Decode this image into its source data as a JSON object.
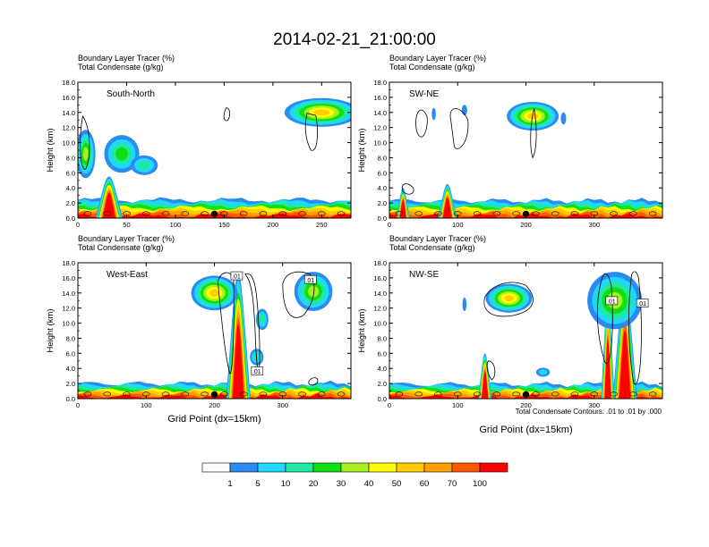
{
  "title": "2014-02-21_21:00:00",
  "panel_label_line1": "Boundary Layer Tracer   (%)",
  "panel_label_line2": "Total Condensate   (g/kg)",
  "ylabel": "Height (km)",
  "xlabel": "Grid Point (dx=15km)",
  "contour_note": "Total Condensate Contours: .01 to .01 by .000",
  "colorbar": {
    "labels": [
      "1",
      "5",
      "10",
      "20",
      "30",
      "40",
      "50",
      "60",
      "70",
      "100"
    ],
    "colors": [
      "#ffffff",
      "#2a8cf0",
      "#20d8ff",
      "#20e8a0",
      "#10e010",
      "#a8f020",
      "#ffff00",
      "#ffcc00",
      "#ffa000",
      "#ff5a00",
      "#ff0000"
    ]
  },
  "chart_data": [
    {
      "type": "heatmap",
      "name": "South-North",
      "xlabel": "",
      "ylabel": "Height (km)",
      "xlim": [
        0,
        280
      ],
      "ylim": [
        0,
        18
      ],
      "xticks": [
        0,
        50,
        100,
        150,
        200,
        250
      ],
      "yticks": [
        "0.0",
        "2.0",
        "4.0",
        "6.0",
        "8.0",
        "10.0",
        "12.0",
        "14.0",
        "16.0",
        "18.0"
      ],
      "marker_x": 140,
      "contour_labels": []
    },
    {
      "type": "heatmap",
      "name": "SW-NE",
      "xlabel": "",
      "ylabel": "Height (km)",
      "xlim": [
        0,
        400
      ],
      "ylim": [
        0,
        18
      ],
      "xticks": [
        0,
        100,
        200,
        300
      ],
      "yticks": [
        "0.0",
        "2.0",
        "4.0",
        "6.0",
        "8.0",
        "10.0",
        "12.0",
        "14.0",
        "16.0",
        "18.0"
      ],
      "marker_x": 200,
      "contour_labels": []
    },
    {
      "type": "heatmap",
      "name": "West-East",
      "xlabel": "Grid Point (dx=15km)",
      "ylabel": "Height (km)",
      "xlim": [
        0,
        400
      ],
      "ylim": [
        0,
        18
      ],
      "xticks": [
        0,
        100,
        200,
        300
      ],
      "yticks": [
        "0.0",
        "2.0",
        "4.0",
        "6.0",
        "8.0",
        "10.0",
        "12.0",
        "14.0",
        "16.0",
        "18.0"
      ],
      "marker_x": 200,
      "contour_labels": [
        ".01",
        ".01",
        ".01"
      ]
    },
    {
      "type": "heatmap",
      "name": "NW-SE",
      "xlabel": "Grid Point (dx=15km)",
      "ylabel": "Height (km)",
      "xlim": [
        0,
        400
      ],
      "ylim": [
        0,
        18
      ],
      "xticks": [
        0,
        100,
        200,
        300
      ],
      "yticks": [
        "0.0",
        "2.0",
        "4.0",
        "6.0",
        "8.0",
        "10.0",
        "12.0",
        "14.0",
        "16.0",
        "18.0"
      ],
      "marker_x": 200,
      "contour_labels": [
        ".01",
        ".01"
      ]
    }
  ]
}
